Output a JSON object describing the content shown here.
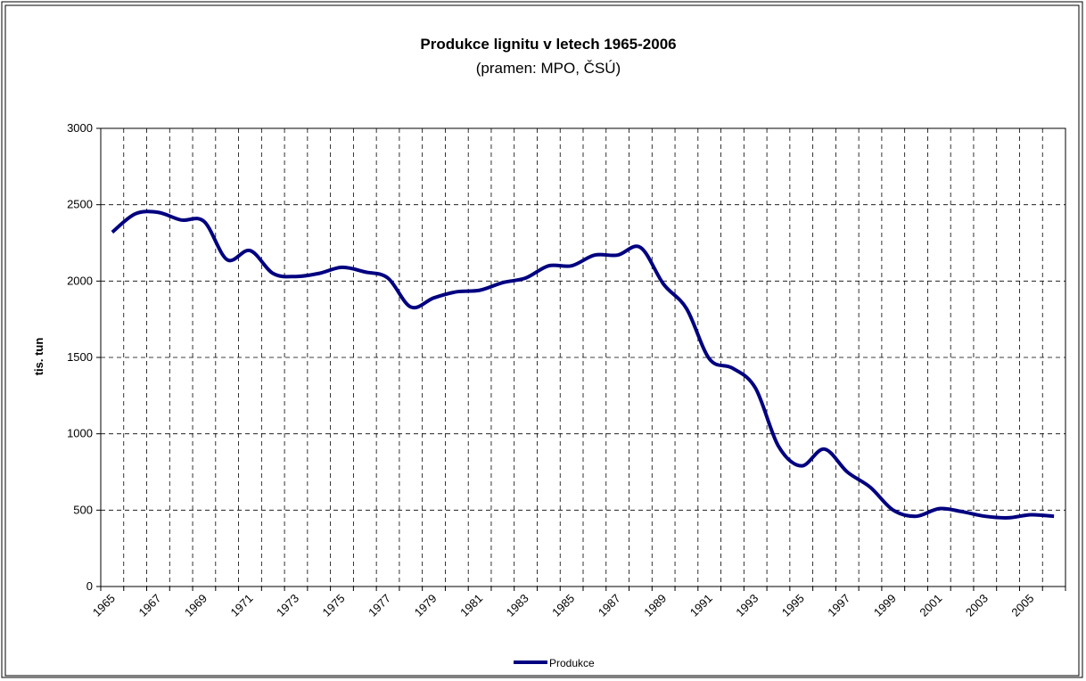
{
  "chart_data": {
    "type": "line",
    "title": "Produkce lignitu v letech 1965-2006",
    "subtitle": "(pramen: MPO, ČSÚ)",
    "y_label": "tis. tun",
    "categories": [
      "1965",
      null,
      "1967",
      null,
      "1969",
      null,
      "1971",
      null,
      "1973",
      null,
      "1975",
      null,
      "1977",
      null,
      "1979",
      null,
      "1981",
      null,
      "1983",
      null,
      "1985",
      null,
      "1987",
      null,
      "1989",
      null,
      "1991",
      null,
      "1993",
      null,
      "1995",
      null,
      "1997",
      null,
      "1999",
      null,
      "2001",
      null,
      "2003",
      null,
      "2005",
      null
    ],
    "series": [
      {
        "name": "Produkce",
        "color": "#000080",
        "values": [
          2320,
          2440,
          2450,
          2400,
          2390,
          2140,
          2200,
          2050,
          2030,
          2050,
          2090,
          2060,
          2020,
          1830,
          1890,
          1930,
          1940,
          1990,
          2020,
          2100,
          2100,
          2170,
          2170,
          2220,
          1980,
          1820,
          1490,
          1430,
          1300,
          920,
          790,
          900,
          750,
          650,
          500,
          460,
          510,
          490,
          460,
          450,
          470,
          460
        ]
      }
    ],
    "ylim": [
      0,
      3000
    ],
    "yticks": [
      0,
      500,
      1000,
      1500,
      2000,
      2500,
      3000
    ],
    "grid": true,
    "legend": "bottom"
  }
}
